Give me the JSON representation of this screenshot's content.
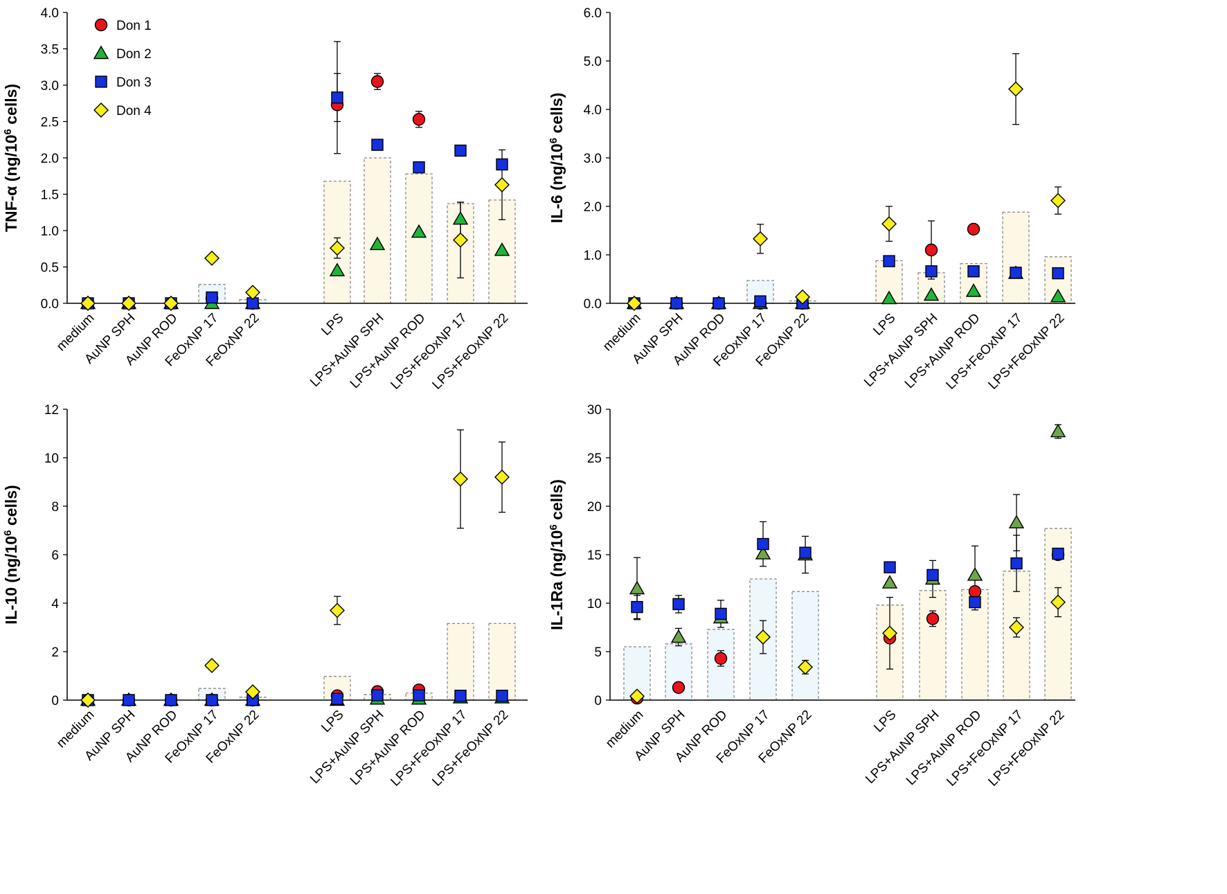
{
  "colors": {
    "don1": "#e8141b",
    "don2": "#22b43a",
    "don2_alt": "#6fa64a",
    "don3": "#1530e0",
    "don4": "#f7ee1a",
    "bar_nonlps": "#eef7fc",
    "bar_lps": "#fdf7e6"
  },
  "legend": [
    {
      "key": "don1",
      "label": "Don 1",
      "marker": "circle"
    },
    {
      "key": "don2",
      "label": "Don 2",
      "marker": "triangle"
    },
    {
      "key": "don3",
      "label": "Don 3",
      "marker": "square"
    },
    {
      "key": "don4",
      "label": "Don 4",
      "marker": "diamond"
    }
  ],
  "chart_data": [
    {
      "type": "bar",
      "title": "",
      "ylabel_main": "TNF-α  (ng/10",
      "ylabel_sup": "6",
      "ylabel_tail": " cells)",
      "ylim": [
        0,
        4.0
      ],
      "yticks": [
        "0.0",
        "0.5",
        "1.0",
        "1.5",
        "2.0",
        "2.5",
        "3.0",
        "3.5",
        "4.0"
      ],
      "show_legend": true,
      "categories": [
        "medium",
        "AuNP SPH",
        "AuNP ROD",
        "FeOxNP 17",
        "FeOxNP 22",
        "LPS",
        "LPS+AuNP SPH",
        "LPS+AuNP ROD",
        "LPS+FeOxNP 17",
        "LPS+FeOxNP 22"
      ],
      "bars": [
        0,
        0,
        0,
        0.26,
        0.05,
        1.68,
        2.0,
        1.78,
        1.37,
        1.42
      ],
      "series": [
        {
          "name": "Don 1",
          "values": [
            0,
            0,
            0,
            0.07,
            0,
            2.73,
            3.05,
            2.53,
            null,
            null
          ],
          "errors": [
            null,
            null,
            null,
            null,
            null,
            null,
            0.11,
            0.11,
            null,
            null
          ]
        },
        {
          "name": "Don 2",
          "values": [
            0,
            0,
            0,
            0,
            0,
            0.45,
            0.81,
            0.98,
            1.16,
            0.73
          ],
          "errors": [
            null,
            null,
            null,
            null,
            null,
            null,
            null,
            null,
            null,
            null
          ]
        },
        {
          "name": "Don 3",
          "values": [
            0,
            0,
            0,
            0.08,
            0,
            2.83,
            2.18,
            1.87,
            2.1,
            1.91
          ],
          "errors": [
            null,
            null,
            null,
            null,
            null,
            0.33,
            null,
            null,
            null,
            null
          ]
        },
        {
          "name": "Don 4",
          "values": [
            0,
            0,
            0,
            0.62,
            0.15,
            0.76,
            null,
            null,
            0.87,
            1.63
          ],
          "errors": [
            null,
            null,
            null,
            null,
            null,
            0.14,
            null,
            null,
            0.52,
            0.48
          ]
        }
      ],
      "extra_errors": [
        {
          "category": "LPS",
          "value": 2.83,
          "error": 0.77
        },
        {
          "category": "LPS+FeOxNP 17",
          "value": 1.16,
          "error": 0.23
        }
      ]
    },
    {
      "type": "bar",
      "title": "",
      "ylabel_main": "IL-6 (ng/10",
      "ylabel_sup": "6",
      "ylabel_tail": " cells)",
      "ylim": [
        0,
        6.0
      ],
      "yticks": [
        "0.0",
        "1.0",
        "2.0",
        "3.0",
        "4.0",
        "5.0",
        "6.0"
      ],
      "show_legend": false,
      "categories": [
        "medium",
        "AuNP SPH",
        "AuNP ROD",
        "FeOxNP 17",
        "FeOxNP 22",
        "LPS",
        "LPS+AuNP SPH",
        "LPS+AuNP ROD",
        "LPS+FeOxNP 17",
        "LPS+FeOxNP 22"
      ],
      "bars": [
        0,
        0,
        0,
        0.47,
        0.05,
        0.88,
        0.63,
        0.82,
        1.88,
        0.96
      ],
      "series": [
        {
          "name": "Don 1",
          "values": [
            0,
            0,
            0,
            0,
            0,
            null,
            1.1,
            1.53,
            null,
            null
          ],
          "errors": [
            null,
            null,
            null,
            null,
            null,
            null,
            0.6,
            null,
            null,
            null
          ]
        },
        {
          "name": "Don 2",
          "values": [
            0,
            0,
            0,
            0,
            0,
            0.1,
            0.17,
            0.25,
            0.62,
            0.14
          ],
          "errors": [
            null,
            null,
            null,
            null,
            null,
            null,
            null,
            null,
            null,
            null
          ]
        },
        {
          "name": "Don 3",
          "values": [
            0,
            0,
            0,
            0.04,
            0,
            0.87,
            0.66,
            0.66,
            0.63,
            0.62
          ],
          "errors": [
            null,
            null,
            null,
            null,
            null,
            null,
            null,
            null,
            null,
            null
          ]
        },
        {
          "name": "Don 4",
          "values": [
            0,
            null,
            null,
            1.33,
            0.13,
            1.64,
            null,
            null,
            4.42,
            2.12
          ],
          "errors": [
            null,
            null,
            null,
            0.3,
            null,
            0.36,
            null,
            null,
            0.73,
            0.28
          ]
        }
      ],
      "extra_errors": []
    },
    {
      "type": "bar",
      "title": "",
      "ylabel_main": "IL-10 (ng/10",
      "ylabel_sup": "6",
      "ylabel_tail": " cells)",
      "ylim": [
        0,
        12
      ],
      "yticks": [
        "0",
        "2",
        "4",
        "6",
        "8",
        "10",
        "12"
      ],
      "show_legend": false,
      "categories": [
        "medium",
        "AuNP SPH",
        "AuNP ROD",
        "FeOxNP 17",
        "FeOxNP 22",
        "LPS",
        "LPS+AuNP SPH",
        "LPS+AuNP ROD",
        "LPS+FeOxNP 17",
        "LPS+FeOxNP 22"
      ],
      "bars": [
        0,
        0,
        0,
        0.48,
        0.12,
        0.98,
        0.23,
        0.29,
        3.16,
        3.16
      ],
      "series": [
        {
          "name": "Don 1",
          "values": [
            0,
            0,
            0,
            0,
            0,
            0.18,
            0.35,
            0.42,
            null,
            null
          ],
          "errors": [
            null,
            null,
            null,
            null,
            null,
            null,
            null,
            null,
            null,
            null
          ]
        },
        {
          "name": "Don 2",
          "values": [
            0,
            0,
            0,
            0,
            0,
            0,
            0.05,
            0.05,
            0.1,
            0.1
          ],
          "errors": [
            null,
            null,
            null,
            null,
            null,
            null,
            null,
            null,
            null,
            null
          ]
        },
        {
          "name": "Don 3",
          "values": [
            0,
            0,
            0,
            0,
            0,
            0.05,
            0.2,
            0.2,
            0.18,
            0.18
          ],
          "errors": [
            null,
            null,
            null,
            null,
            null,
            null,
            null,
            null,
            null,
            null
          ]
        },
        {
          "name": "Don 4",
          "values": [
            0,
            null,
            null,
            1.43,
            0.34,
            3.7,
            null,
            null,
            9.12,
            9.2
          ],
          "errors": [
            null,
            null,
            null,
            null,
            null,
            0.58,
            null,
            null,
            2.03,
            1.45
          ]
        }
      ],
      "extra_errors": []
    },
    {
      "type": "bar",
      "title": "",
      "ylabel_main": "IL-1Ra (ng/10",
      "ylabel_sup": "6",
      "ylabel_tail": " cells)",
      "ylim": [
        0,
        30
      ],
      "yticks": [
        "0",
        "5",
        "10",
        "15",
        "20",
        "25",
        "30"
      ],
      "show_legend": false,
      "categories": [
        "medium",
        "AuNP SPH",
        "AuNP ROD",
        "FeOxNP 17",
        "FeOxNP 22",
        "LPS",
        "LPS+AuNP SPH",
        "LPS+AuNP ROD",
        "LPS+FeOxNP 17",
        "LPS+FeOxNP 22"
      ],
      "bars": [
        5.5,
        5.8,
        7.3,
        12.5,
        11.2,
        9.8,
        11.3,
        11.4,
        13.3,
        17.7
      ],
      "series": [
        {
          "name": "Don 1",
          "values": [
            0.2,
            1.3,
            4.3,
            null,
            null,
            6.4,
            8.4,
            11.2,
            null,
            15.0
          ],
          "errors": [
            null,
            null,
            0.8,
            null,
            null,
            null,
            0.8,
            null,
            null,
            null
          ]
        },
        {
          "name": "Don 2",
          "values": [
            11.5,
            6.5,
            8.5,
            15.1,
            15.0,
            12.1,
            12.5,
            12.9,
            18.3,
            27.7
          ],
          "errors": [
            3.2,
            0.9,
            null,
            null,
            1.9,
            null,
            1.9,
            3.0,
            2.9,
            0.7
          ]
        },
        {
          "name": "Don 3",
          "values": [
            9.6,
            9.9,
            8.9,
            16.1,
            15.2,
            13.7,
            12.9,
            10.1,
            14.1,
            15.1
          ],
          "errors": [
            1.2,
            0.9,
            1.4,
            2.3,
            null,
            null,
            null,
            0.8,
            2.9,
            null
          ]
        },
        {
          "name": "Don 4",
          "values": [
            0.4,
            null,
            null,
            6.5,
            3.4,
            6.9,
            null,
            null,
            7.5,
            10.1
          ],
          "errors": [
            null,
            null,
            null,
            1.7,
            0.7,
            3.7,
            null,
            null,
            1.0,
            1.5
          ]
        }
      ],
      "extra_errors": []
    }
  ]
}
